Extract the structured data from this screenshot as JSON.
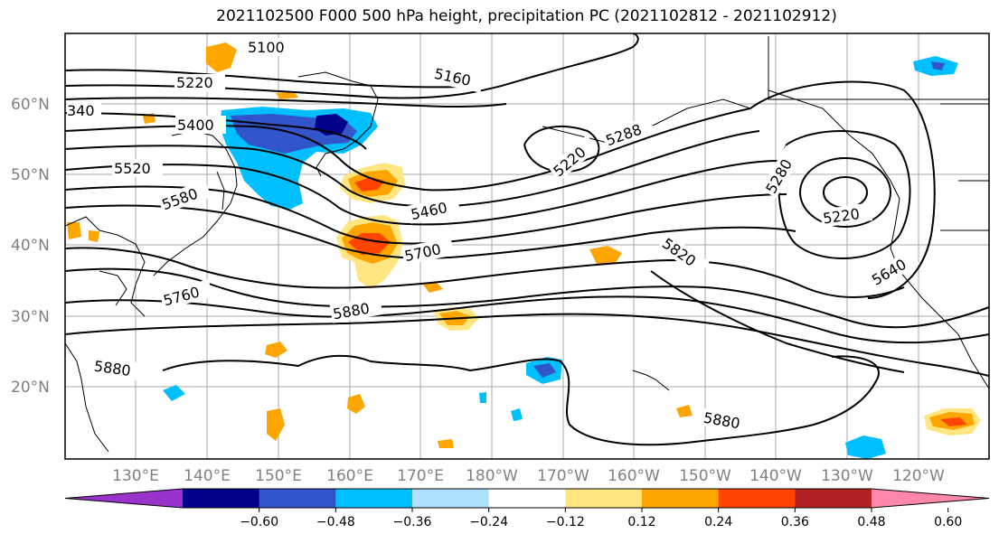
{
  "title": "2021102500 F000 500 hPa height, precipitation PC (2021102812 - 2021102912)",
  "latitude_labels": [
    "60°N",
    "50°N",
    "40°N",
    "30°N",
    "20°N"
  ],
  "longitude_labels": [
    "130°E",
    "140°E",
    "150°E",
    "160°E",
    "170°E",
    "180°W",
    "170°W",
    "160°W",
    "150°W",
    "140°W",
    "130°W",
    "120°W"
  ],
  "contour_labels": [
    "5100",
    "5160",
    "5220",
    "340",
    "5400",
    "5520",
    "5580",
    "5460",
    "5220",
    "5288",
    "5280",
    "5220",
    "5700",
    "5820",
    "5760",
    "5640",
    "5880",
    "5880",
    "5880"
  ],
  "colorbar": {
    "ticks": [
      "−0.60",
      "−0.48",
      "−0.36",
      "−0.24",
      "−0.12",
      "0.12",
      "0.24",
      "0.36",
      "0.48",
      "0.60"
    ],
    "colors": [
      "#9933cc",
      "#00008b",
      "#3355cc",
      "#00bfff",
      "#b0e0ff",
      "#ffffff",
      "#ffe680",
      "#ffa500",
      "#ff4500",
      "#b22222",
      "#ff88aa"
    ]
  }
}
